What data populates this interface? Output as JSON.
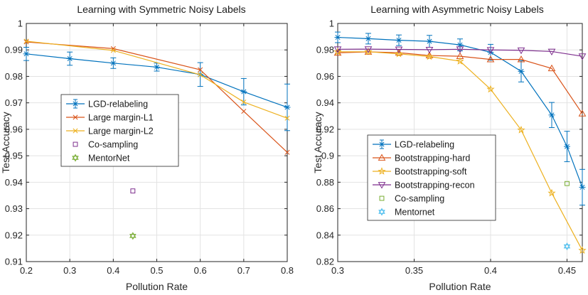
{
  "chart_data": [
    {
      "type": "line",
      "title": "Learning with Symmetric Noisy Labels",
      "xlabel": "Pollution Rate",
      "ylabel": "Test Accuracy",
      "xlim": [
        0.2,
        0.8
      ],
      "ylim": [
        0.91,
        1.0
      ],
      "xticks": [
        "0.2",
        "0.3",
        "0.4",
        "0.5",
        "0.6",
        "0.7",
        "0.8"
      ],
      "yticks": [
        "0.91",
        "0.92",
        "0.93",
        "0.94",
        "0.95",
        "0.96",
        "0.97",
        "0.98",
        "0.99",
        "1"
      ],
      "grid": true,
      "legend_position": "middle-left",
      "series": [
        {
          "name": "LGD-relabeling",
          "color": "#0072BD",
          "marker": "asterisk",
          "x": [
            0.2,
            0.3,
            0.4,
            0.5,
            0.6,
            0.7,
            0.8
          ],
          "y": [
            0.9885,
            0.9867,
            0.985,
            0.9835,
            0.9807,
            0.9742,
            0.9683
          ],
          "err": [
            0.0025,
            0.0025,
            0.002,
            0.0015,
            0.0045,
            0.005,
            0.0088
          ]
        },
        {
          "name": "Large margin-L1",
          "color": "#D95319",
          "marker": "x",
          "x": [
            0.2,
            0.4,
            0.6,
            0.7,
            0.8
          ],
          "y": [
            0.993,
            0.9905,
            0.9825,
            0.9668,
            0.9513
          ]
        },
        {
          "name": "Large margin-L2",
          "color": "#EDB120",
          "marker": "x",
          "x": [
            0.2,
            0.4,
            0.6,
            0.7,
            0.8
          ],
          "y": [
            0.9933,
            0.9898,
            0.9806,
            0.9703,
            0.9642
          ]
        },
        {
          "name": "Co-sampling",
          "color": "#7E2F8E",
          "marker": "square",
          "x": [
            0.445
          ],
          "y": [
            0.9367
          ]
        },
        {
          "name": "MentorNet",
          "color": "#77AC30",
          "marker": "hexagram",
          "x": [
            0.445
          ],
          "y": [
            0.9197
          ]
        }
      ]
    },
    {
      "type": "line",
      "title": "Learning with Asymmetric Noisy Labels",
      "xlabel": "Pollution Rate",
      "ylabel": "Test Accuracy",
      "xlim": [
        0.3,
        0.46
      ],
      "ylim": [
        0.82,
        1.0
      ],
      "xticks": [
        "0.3",
        "0.35",
        "0.4",
        "0.45"
      ],
      "yticks": [
        "0.82",
        "0.84",
        "0.86",
        "0.88",
        "0.9",
        "0.92",
        "0.94",
        "0.96",
        "0.98",
        "1"
      ],
      "grid": true,
      "legend_position": "bottom-left",
      "series": [
        {
          "name": "LGD-relabeling",
          "color": "#0072BD",
          "marker": "asterisk",
          "x": [
            0.3,
            0.32,
            0.34,
            0.36,
            0.38,
            0.4,
            0.42,
            0.44,
            0.45,
            0.46
          ],
          "y": [
            0.9895,
            0.9885,
            0.9873,
            0.9865,
            0.9838,
            0.9782,
            0.9638,
            0.9308,
            0.907,
            0.8762
          ],
          "err": [
            0.004,
            0.004,
            0.004,
            0.0045,
            0.0045,
            0.006,
            0.008,
            0.0095,
            0.0115,
            0.0135
          ]
        },
        {
          "name": "Bootstrapping-hard",
          "color": "#D95319",
          "marker": "triangle-up",
          "x": [
            0.3,
            0.32,
            0.34,
            0.36,
            0.38,
            0.4,
            0.42,
            0.44,
            0.46
          ],
          "y": [
            0.9778,
            0.9785,
            0.9779,
            0.9758,
            0.9752,
            0.9728,
            0.9728,
            0.966,
            0.9318
          ]
        },
        {
          "name": "Bootstrapping-soft",
          "color": "#EDB120",
          "marker": "pentagram",
          "x": [
            0.3,
            0.32,
            0.34,
            0.36,
            0.38,
            0.4,
            0.42,
            0.44,
            0.46
          ],
          "y": [
            0.9786,
            0.9786,
            0.977,
            0.975,
            0.9715,
            0.9503,
            0.9195,
            0.8718,
            0.8285
          ]
        },
        {
          "name": "Bootstrapping-recon",
          "color": "#7E2F8E",
          "marker": "triangle-down",
          "x": [
            0.3,
            0.32,
            0.34,
            0.36,
            0.38,
            0.4,
            0.42,
            0.44,
            0.46
          ],
          "y": [
            0.9805,
            0.9806,
            0.9804,
            0.9802,
            0.9805,
            0.98,
            0.9797,
            0.9788,
            0.9752
          ]
        },
        {
          "name": "Co-sampling",
          "color": "#77AC30",
          "marker": "square",
          "x": [
            0.45
          ],
          "y": [
            0.879
          ]
        },
        {
          "name": "Mentornet",
          "color": "#4DBEEE",
          "marker": "hexagram",
          "x": [
            0.45
          ],
          "y": [
            0.8315
          ]
        }
      ]
    }
  ]
}
